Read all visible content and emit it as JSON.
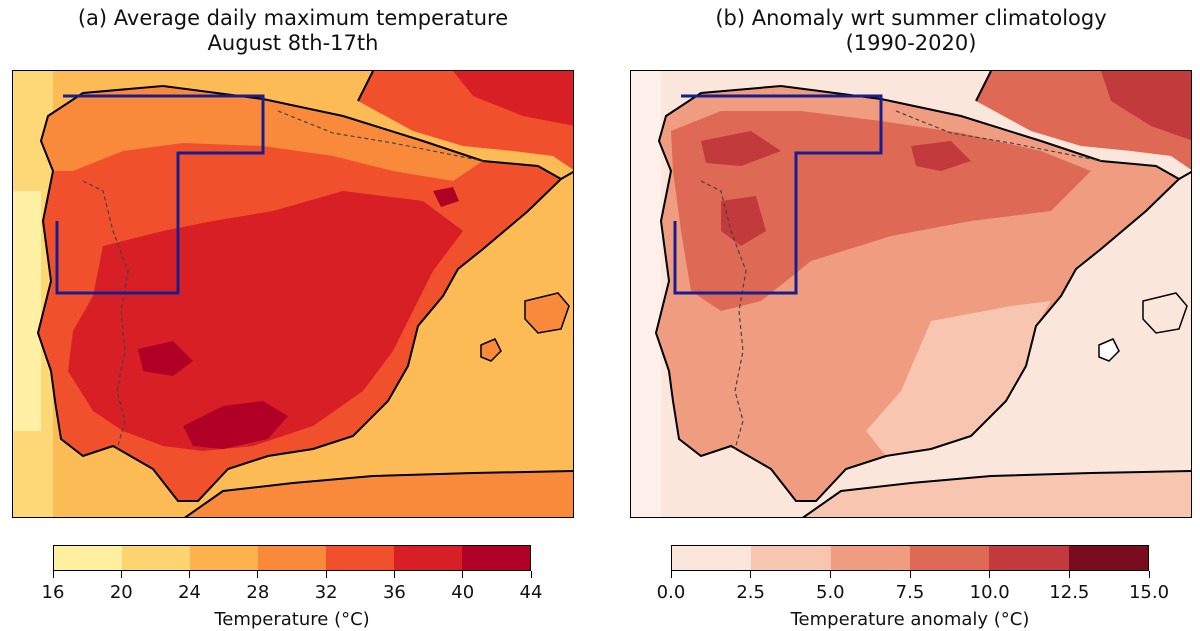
{
  "panel_a": {
    "title_line1": "(a) Average daily maximum temperature",
    "title_line2": "August 8th-17th",
    "colorbar": {
      "ticks": [
        "16",
        "20",
        "24",
        "28",
        "32",
        "36",
        "40",
        "44"
      ],
      "colors": [
        "#fff0a0",
        "#fed470",
        "#fdb24c",
        "#f98a3c",
        "#f1502c",
        "#d91f26",
        "#b00026"
      ],
      "label": "Temperature (°C)"
    }
  },
  "panel_b": {
    "title_line1": "(b) Anomaly wrt summer climatology",
    "title_line2": "(1990-2020)",
    "colorbar": {
      "ticks": [
        "0.0",
        "2.5",
        "5.0",
        "7.5",
        "10.0",
        "12.5",
        "15.0"
      ],
      "colors": [
        "#fbe6dc",
        "#f8c6b0",
        "#ef9c80",
        "#de6a56",
        "#c23a3b",
        "#7a0c1f"
      ],
      "label": "Temperature anomaly (°C)"
    }
  },
  "colors": {
    "outline": "#000000",
    "region_box": "#1a1e8c"
  }
}
